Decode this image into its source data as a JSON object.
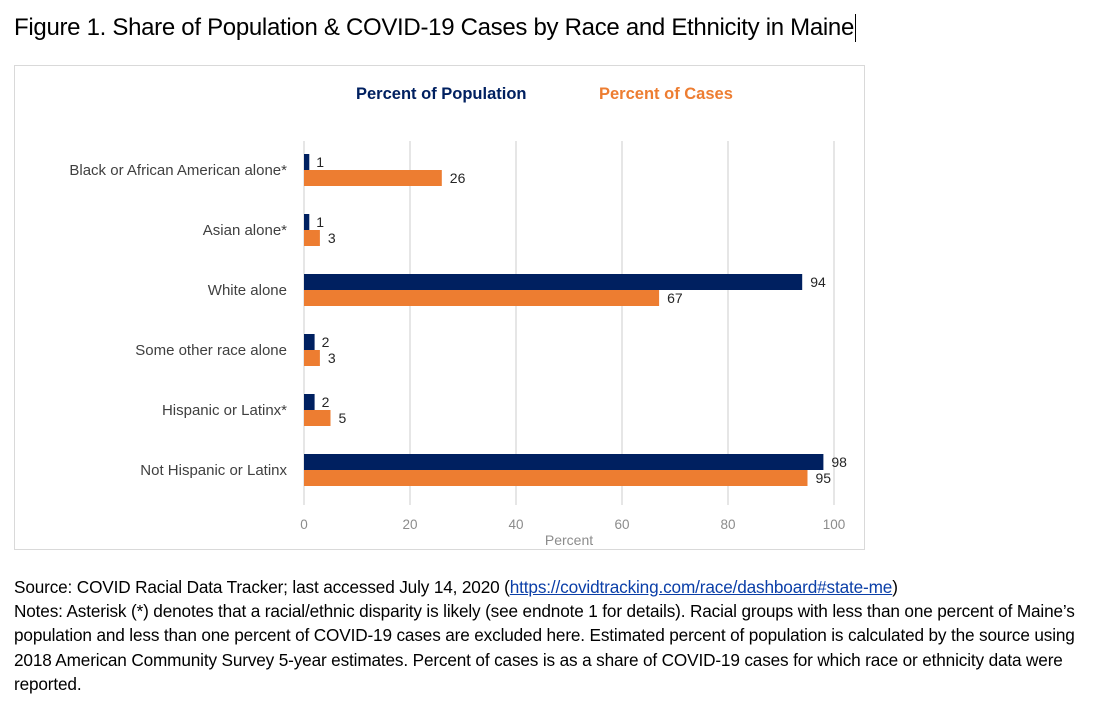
{
  "figure": {
    "title": "Figure 1. Share of Population & COVID-19 Cases by Race and Ethnicity in Maine"
  },
  "chart_data": {
    "type": "bar",
    "orientation": "horizontal",
    "title": "",
    "categories": [
      "Black or African American alone*",
      "Asian alone*",
      "White alone",
      "Some other race alone",
      "Hispanic or Latinx*",
      "Not Hispanic or Latinx"
    ],
    "series": [
      {
        "name": "Percent of Population",
        "color": "#002060",
        "values": [
          1,
          1,
          94,
          2,
          2,
          98
        ]
      },
      {
        "name": "Percent of Cases",
        "color": "#ED7D31",
        "values": [
          26,
          3,
          67,
          3,
          5,
          95
        ]
      }
    ],
    "xlabel": "Percent",
    "ylabel": "",
    "xlim": [
      0,
      100
    ],
    "xticks": [
      0,
      20,
      40,
      60,
      80,
      100
    ],
    "grid": true,
    "gridline_color": "#d9d9d9",
    "legend_position": "top-center"
  },
  "notes": {
    "source_prefix": "Source: COVID Racial Data Tracker; last accessed July 14, 2020 (",
    "source_link": "https://covidtracking.com/race/dashboard#state-me",
    "source_suffix": ")",
    "notes_text": "Notes: Asterisk (*) denotes that a racial/ethnic disparity is likely (see endnote 1 for details). Racial groups with less than one percent of Maine’s population and less than one percent of COVID-19 cases are excluded here. Estimated percent of population is calculated by the source using 2018 American Community Survey 5-year estimates. Percent of cases is as a share of COVID-19 cases for which race or ethnicity data were reported."
  }
}
